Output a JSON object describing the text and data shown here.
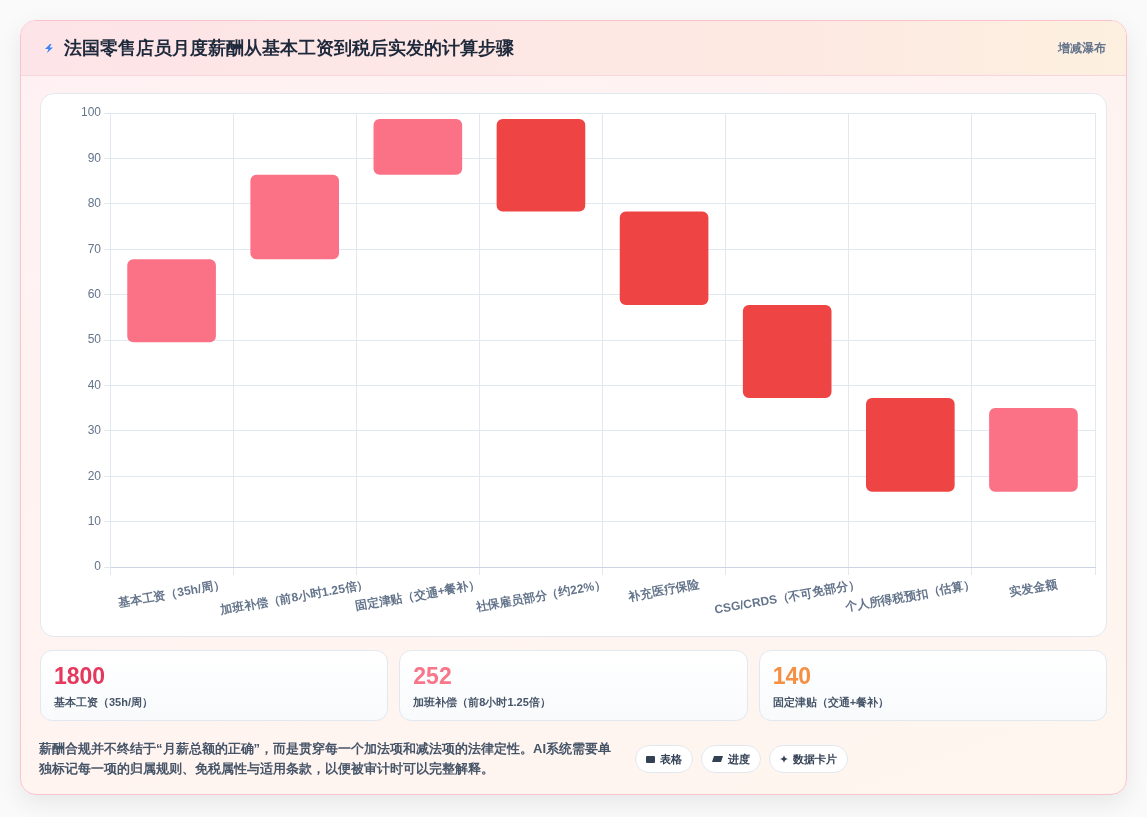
{
  "chart_data": {
    "type": "bar",
    "title": "法国零售店员月度薪酬从基本工资到税后实发的计算步骤",
    "subtitle": "增减瀑布",
    "categories": [
      "基本工资（35h/周）",
      "加班补偿（前8小时1.25倍）",
      "固定津贴（交通+餐补）",
      "社保雇员部分（约22%）",
      "补充医疗保险",
      "CSG/CRDS（不可免部分）",
      "个人所得税预扣（估算）",
      "实发金额"
    ],
    "base": [
      49.5,
      67.8,
      86.4,
      98.7,
      78.3,
      57.7,
      37.2,
      16.6
    ],
    "values": [
      18.3,
      18.6,
      12.3,
      -20.4,
      -20.6,
      -20.5,
      -20.6,
      18.4
    ],
    "colors": [
      "#fb7185",
      "#fb7185",
      "#fb7185",
      "#ef4444",
      "#ef4444",
      "#ef4444",
      "#ef4444",
      "#fb7185"
    ],
    "ylim": [
      0,
      100
    ],
    "yticks": [
      0,
      10,
      20,
      30,
      40,
      50,
      60,
      70,
      80,
      90,
      100
    ],
    "grid": true,
    "annotations": [
      "1800",
      "基本工资（35h/周）",
      "252",
      "加班补偿（前8小时1.25倍）",
      "140",
      "固定津贴（交通+餐补）",
      "薪酬合规并不终结于“月薪总额的正确”，而是贯穿每一个加法项和减法项的法律定性。AI系统需要单独标记每一项的归属规则、免税属性与适用条款，以便被审计时可以完整解释。",
      "表格",
      "进度",
      "数据卡片"
    ]
  }
}
